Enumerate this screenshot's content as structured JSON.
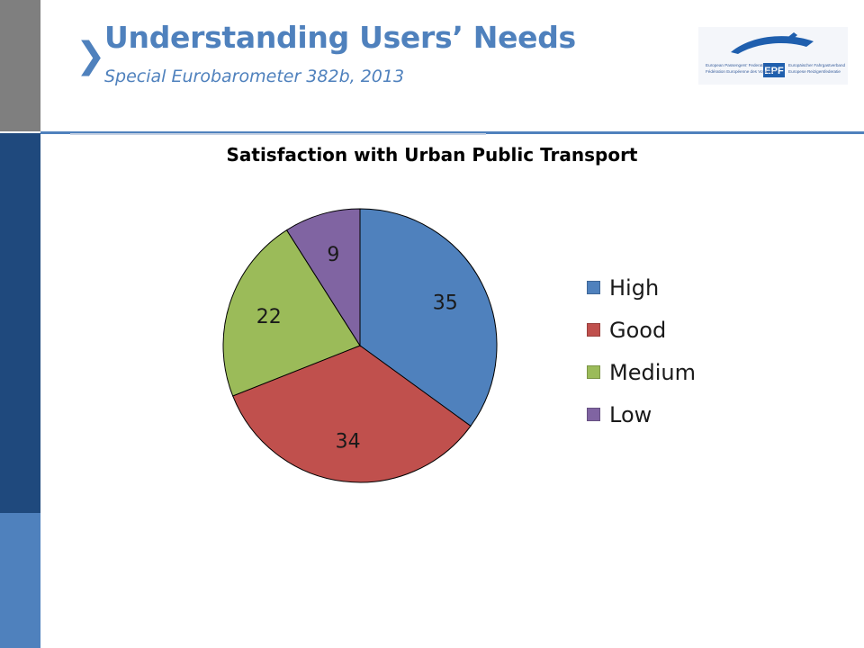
{
  "header": {
    "chevron_glyph": "❯",
    "title": "Understanding Users’ Needs",
    "subtitle": "Special Eurobarometer 382b, 2013"
  },
  "logo": {
    "mark": "EPF",
    "line1_left": "European Passengers' Federation",
    "line2_left": "Fédération Européenne des Voyageurs",
    "line1_right": "Europäischer Fahrgastverband",
    "line2_right": "Europese Reizigersfederatie"
  },
  "colors": {
    "accent": "#4f81bd",
    "sidebar_dark": "#1f497d",
    "sidebar_gray": "#7f7f7f"
  },
  "chart_data": {
    "type": "pie",
    "title": "Satisfaction with Urban Public Transport",
    "categories": [
      "High",
      "Good",
      "Medium",
      "Low"
    ],
    "values": [
      35,
      34,
      22,
      9
    ],
    "colors": [
      "#4f81bd",
      "#c0504d",
      "#9bbb59",
      "#8064a2"
    ],
    "start_angle_deg": 0,
    "direction": "clockwise",
    "legend_position": "right"
  }
}
